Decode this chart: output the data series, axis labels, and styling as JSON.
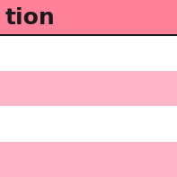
{
  "header_color": "#FF8099",
  "header_text": "tion",
  "header_text_color": "#1a1a1a",
  "header_text_fontsize": 18,
  "header_text_weight": "bold",
  "border_color": "#1a1a1a",
  "border_linewidth": 1.5,
  "row_colors": [
    "#ffffff",
    "#FFB3C6",
    "#ffffff",
    "#FFB3C6"
  ],
  "background_color": "#ffffff",
  "fig_width": 1.97,
  "fig_height": 1.97,
  "dpi": 100
}
